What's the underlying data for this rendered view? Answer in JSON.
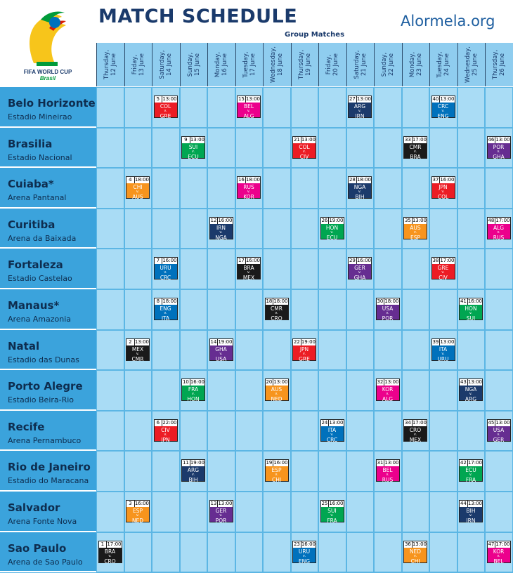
{
  "title": "MATCH SCHEDULE",
  "site": "Alormela.org",
  "subtitle": "Group Matches",
  "logo_text": {
    "line1": "FIFA WORLD CUP",
    "line2": "Brasil"
  },
  "dates": [
    {
      "day": "Thursday,",
      "date": "12 June"
    },
    {
      "day": "Friday,",
      "date": "13 June"
    },
    {
      "day": "Saturday,",
      "date": "14 June"
    },
    {
      "day": "Sunday,",
      "date": "15 June"
    },
    {
      "day": "Monday,",
      "date": "16 June"
    },
    {
      "day": "Tuesday,",
      "date": "17 June"
    },
    {
      "day": "Wednesday,",
      "date": "18 June"
    },
    {
      "day": "Thursday,",
      "date": "19 June"
    },
    {
      "day": "Friday,",
      "date": "20 June"
    },
    {
      "day": "Saturday,",
      "date": "21 June"
    },
    {
      "day": "Sunday,",
      "date": "22 June"
    },
    {
      "day": "Monday,",
      "date": "23 June"
    },
    {
      "day": "Tuesday,",
      "date": "24 June"
    },
    {
      "day": "Wednesday,",
      "date": "25 June"
    },
    {
      "day": "Thursday,",
      "date": "26 June"
    }
  ],
  "colors": {
    "A": "#1a1a1a",
    "B": "#f7941d",
    "C": "#ec1c24",
    "D": "#0071bc",
    "E": "#00a651",
    "F": "#1b3a6b",
    "G": "#662d91",
    "H": "#ec008c"
  },
  "v_text": "v.",
  "venues": [
    {
      "city": "Belo Horizonte",
      "stadium": "Estadio Mineirao"
    },
    {
      "city": "Brasilia",
      "stadium": "Estadio Nacional"
    },
    {
      "city": "Cuiaba*",
      "stadium": "Arena Pantanal"
    },
    {
      "city": "Curitiba",
      "stadium": "Arena da Baixada"
    },
    {
      "city": "Fortaleza",
      "stadium": "Estadio Castelao"
    },
    {
      "city": "Manaus*",
      "stadium": "Arena Amazonia"
    },
    {
      "city": "Natal",
      "stadium": "Estadio das Dunas"
    },
    {
      "city": "Porto Alegre",
      "stadium": "Estadio Beira-Rio"
    },
    {
      "city": "Recife",
      "stadium": "Arena Pernambuco"
    },
    {
      "city": "Rio de Janeiro",
      "stadium": "Estadio do Maracana"
    },
    {
      "city": "Salvador",
      "stadium": "Arena Fonte Nova"
    },
    {
      "city": "Sao Paulo",
      "stadium": "Arena de Sao Paulo"
    }
  ],
  "matches": [
    {
      "venue": 0,
      "day": 2,
      "num": "5",
      "time": "13:00",
      "t1": "COL",
      "t2": "GRE",
      "group": "C"
    },
    {
      "venue": 0,
      "day": 5,
      "num": "15",
      "time": "13:00",
      "t1": "BEL",
      "t2": "ALG",
      "group": "H"
    },
    {
      "venue": 0,
      "day": 9,
      "num": "27",
      "time": "13:00",
      "t1": "ARG",
      "t2": "IRN",
      "group": "F"
    },
    {
      "venue": 0,
      "day": 12,
      "num": "40",
      "time": "13:00",
      "t1": "CRC",
      "t2": "ENG",
      "group": "D"
    },
    {
      "venue": 1,
      "day": 3,
      "num": "9",
      "time": "13:00",
      "t1": "SUI",
      "t2": "ECU",
      "group": "E"
    },
    {
      "venue": 1,
      "day": 7,
      "num": "21",
      "time": "13:00",
      "t1": "COL",
      "t2": "CIV",
      "group": "C"
    },
    {
      "venue": 1,
      "day": 11,
      "num": "33",
      "time": "17:00",
      "t1": "CMR",
      "t2": "BRA",
      "group": "A"
    },
    {
      "venue": 1,
      "day": 14,
      "num": "46",
      "time": "13:00",
      "t1": "POR",
      "t2": "GHA",
      "group": "G"
    },
    {
      "venue": 2,
      "day": 1,
      "num": "4",
      "time": "18:00",
      "t1": "CHI",
      "t2": "AUS",
      "group": "B"
    },
    {
      "venue": 2,
      "day": 5,
      "num": "16",
      "time": "18:00",
      "t1": "RUS",
      "t2": "KOR",
      "group": "H"
    },
    {
      "venue": 2,
      "day": 9,
      "num": "28",
      "time": "18:00",
      "t1": "NGA",
      "t2": "BIH",
      "group": "F"
    },
    {
      "venue": 2,
      "day": 12,
      "num": "37",
      "time": "16:00",
      "t1": "JPN",
      "t2": "COL",
      "group": "C"
    },
    {
      "venue": 3,
      "day": 4,
      "num": "12",
      "time": "16:00",
      "t1": "IRN",
      "t2": "NGA",
      "group": "F"
    },
    {
      "venue": 3,
      "day": 8,
      "num": "26",
      "time": "19:00",
      "t1": "HON",
      "t2": "ECU",
      "group": "E"
    },
    {
      "venue": 3,
      "day": 11,
      "num": "35",
      "time": "13:00",
      "t1": "AUS",
      "t2": "ESP",
      "group": "B"
    },
    {
      "venue": 3,
      "day": 14,
      "num": "48",
      "time": "17:00",
      "t1": "ALG",
      "t2": "RUS",
      "group": "H"
    },
    {
      "venue": 4,
      "day": 2,
      "num": "7",
      "time": "16:00",
      "t1": "URU",
      "t2": "CRC",
      "group": "D"
    },
    {
      "venue": 4,
      "day": 5,
      "num": "17",
      "time": "16:00",
      "t1": "BRA",
      "t2": "MEX",
      "group": "A"
    },
    {
      "venue": 4,
      "day": 9,
      "num": "29",
      "time": "16:00",
      "t1": "GER",
      "t2": "GHA",
      "group": "G"
    },
    {
      "venue": 4,
      "day": 12,
      "num": "38",
      "time": "17:00",
      "t1": "GRE",
      "t2": "CIV",
      "group": "C"
    },
    {
      "venue": 5,
      "day": 2,
      "num": "8",
      "time": "18:00",
      "t1": "ENG",
      "t2": "ITA",
      "group": "D"
    },
    {
      "venue": 5,
      "day": 6,
      "num": "18",
      "time": "18:00",
      "t1": "CMR",
      "t2": "CRO",
      "group": "A"
    },
    {
      "venue": 5,
      "day": 10,
      "num": "30",
      "time": "18:00",
      "t1": "USA",
      "t2": "POR",
      "group": "G"
    },
    {
      "venue": 5,
      "day": 13,
      "num": "41",
      "time": "16:00",
      "t1": "HON",
      "t2": "SUI",
      "group": "E"
    },
    {
      "venue": 6,
      "day": 1,
      "num": "2",
      "time": "13:00",
      "t1": "MEX",
      "t2": "CMR",
      "group": "A"
    },
    {
      "venue": 6,
      "day": 4,
      "num": "14",
      "time": "19:00",
      "t1": "GHA",
      "t2": "USA",
      "group": "G"
    },
    {
      "venue": 6,
      "day": 7,
      "num": "22",
      "time": "19:00",
      "t1": "JPN",
      "t2": "GRE",
      "group": "C"
    },
    {
      "venue": 6,
      "day": 12,
      "num": "39",
      "time": "13:00",
      "t1": "ITA",
      "t2": "URU",
      "group": "D"
    },
    {
      "venue": 7,
      "day": 3,
      "num": "10",
      "time": "16:00",
      "t1": "FRA",
      "t2": "HON",
      "group": "E"
    },
    {
      "venue": 7,
      "day": 6,
      "num": "20",
      "time": "13:00",
      "t1": "AUS",
      "t2": "NED",
      "group": "B"
    },
    {
      "venue": 7,
      "day": 10,
      "num": "32",
      "time": "13:00",
      "t1": "KOR",
      "t2": "ALG",
      "group": "H"
    },
    {
      "venue": 7,
      "day": 13,
      "num": "43",
      "time": "13:00",
      "t1": "NGA",
      "t2": "ARG",
      "group": "F"
    },
    {
      "venue": 8,
      "day": 2,
      "num": "6",
      "time": "22:00",
      "t1": "CIV",
      "t2": "JPN",
      "group": "C"
    },
    {
      "venue": 8,
      "day": 8,
      "num": "24",
      "time": "13:00",
      "t1": "ITA",
      "t2": "CRC",
      "group": "D"
    },
    {
      "venue": 8,
      "day": 11,
      "num": "34",
      "time": "17:00",
      "t1": "CRO",
      "t2": "MEX",
      "group": "A"
    },
    {
      "venue": 8,
      "day": 14,
      "num": "45",
      "time": "13:00",
      "t1": "USA",
      "t2": "GER",
      "group": "G"
    },
    {
      "venue": 9,
      "day": 3,
      "num": "11",
      "time": "19:00",
      "t1": "ARG",
      "t2": "BIH",
      "group": "F"
    },
    {
      "venue": 9,
      "day": 6,
      "num": "19",
      "time": "16:00",
      "t1": "ESP",
      "t2": "CHI",
      "group": "B"
    },
    {
      "venue": 9,
      "day": 10,
      "num": "31",
      "time": "13:00",
      "t1": "BEL",
      "t2": "RUS",
      "group": "H"
    },
    {
      "venue": 9,
      "day": 13,
      "num": "42",
      "time": "17:00",
      "t1": "ECU",
      "t2": "FRA",
      "group": "E"
    },
    {
      "venue": 10,
      "day": 1,
      "num": "3",
      "time": "16:00",
      "t1": "ESP",
      "t2": "NED",
      "group": "B"
    },
    {
      "venue": 10,
      "day": 4,
      "num": "13",
      "time": "13:00",
      "t1": "GER",
      "t2": "POR",
      "group": "G"
    },
    {
      "venue": 10,
      "day": 8,
      "num": "25",
      "time": "16:00",
      "t1": "SUI",
      "t2": "FRA",
      "group": "E"
    },
    {
      "venue": 10,
      "day": 13,
      "num": "44",
      "time": "13:00",
      "t1": "BIH",
      "t2": "IRN",
      "group": "F"
    },
    {
      "venue": 11,
      "day": 0,
      "num": "1",
      "time": "17:00",
      "t1": "BRA",
      "t2": "CRO",
      "group": "A"
    },
    {
      "venue": 11,
      "day": 7,
      "num": "23",
      "time": "16:00",
      "t1": "URU",
      "t2": "ENG",
      "group": "D"
    },
    {
      "venue": 11,
      "day": 11,
      "num": "36",
      "time": "13:00",
      "t1": "NED",
      "t2": "CHI",
      "group": "B"
    },
    {
      "venue": 11,
      "day": 14,
      "num": "47",
      "time": "17:00",
      "t1": "KOR",
      "t2": "BEL",
      "group": "H"
    }
  ]
}
